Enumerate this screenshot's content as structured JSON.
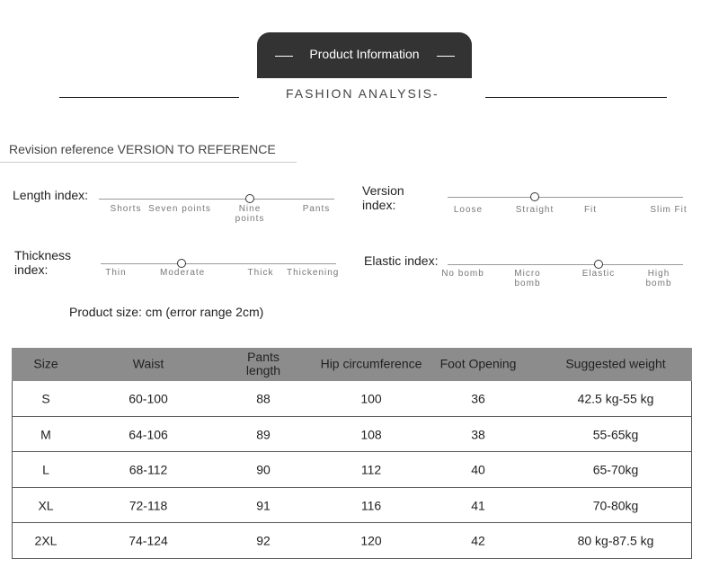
{
  "header": {
    "tab": "Product Information",
    "subtitle": "FASHION ANALYSIS-"
  },
  "revision": "Revision reference VERSION TO REFERENCE",
  "indices": [
    {
      "label": "Length index:",
      "options": [
        "Shorts",
        "Seven points",
        "Nine points",
        "Pants"
      ],
      "selected": 2
    },
    {
      "label": "Version index:",
      "options": [
        "Loose",
        "Straight",
        "Fit",
        "Slim Fit"
      ],
      "selected": 1
    },
    {
      "label": "Thickness index:",
      "options": [
        "Thin",
        "Moderate",
        "Thick",
        "Thickening"
      ],
      "selected": 1
    },
    {
      "label": "Elastic index:",
      "options": [
        "No bomb",
        "Micro bomb",
        "Elastic",
        "High bomb"
      ],
      "selected": 2
    }
  ],
  "size_note": "Product size: cm (error range 2cm)",
  "table": {
    "header": [
      "Size",
      "Waist",
      "Pants length",
      "Hip circumference",
      "Foot Opening",
      "Suggested weight"
    ],
    "rows": [
      [
        "S",
        "60-100",
        "88",
        "100",
        "36",
        "42.5 kg-55 kg"
      ],
      [
        "M",
        "64-106",
        "89",
        "108",
        "38",
        "55-65kg"
      ],
      [
        "L",
        "68-112",
        "90",
        "112",
        "40",
        "65-70kg"
      ],
      [
        "XL",
        "72-118",
        "91",
        "116",
        "41",
        "70-80kg"
      ],
      [
        "2XL",
        "74-124",
        "92",
        "120",
        "42",
        "80 kg-87.5 kg"
      ]
    ]
  }
}
